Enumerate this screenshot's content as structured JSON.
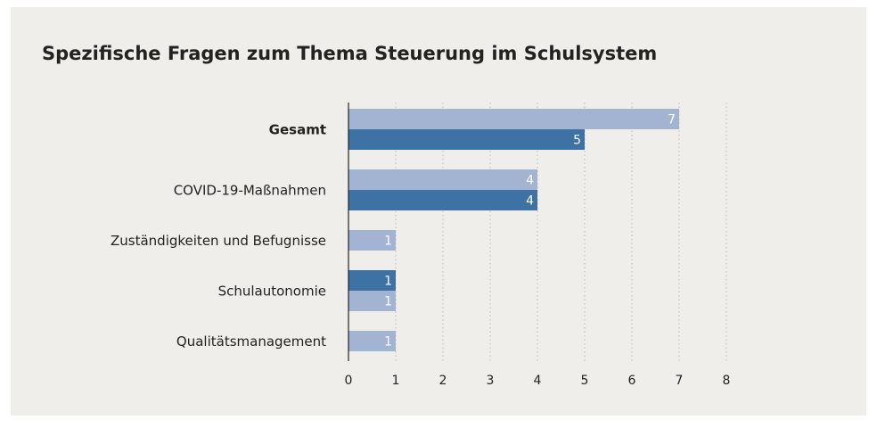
{
  "chart_data": {
    "type": "hbar",
    "title": "Spezifische Fragen zum Thema Steuerung im Schulsystem",
    "categories": [
      "Gesamt",
      "COVID-19-Maßnahmen",
      "Zuständigkeiten und Befugnisse",
      "Schulautonomie",
      "Qualitätsmanagement"
    ],
    "series": [
      {
        "color": "#a3b4d3",
        "values": [
          7,
          4,
          1,
          null,
          1
        ]
      },
      {
        "color": "#3e72a5",
        "values": [
          5,
          4,
          null,
          1,
          null
        ]
      },
      {
        "color": "#a3b4d3",
        "values": [
          null,
          null,
          null,
          1,
          null
        ]
      }
    ],
    "xlim": [
      0,
      8
    ],
    "xticks": [
      0,
      1,
      2,
      3,
      4,
      5,
      6,
      7,
      8
    ],
    "grid": true
  }
}
